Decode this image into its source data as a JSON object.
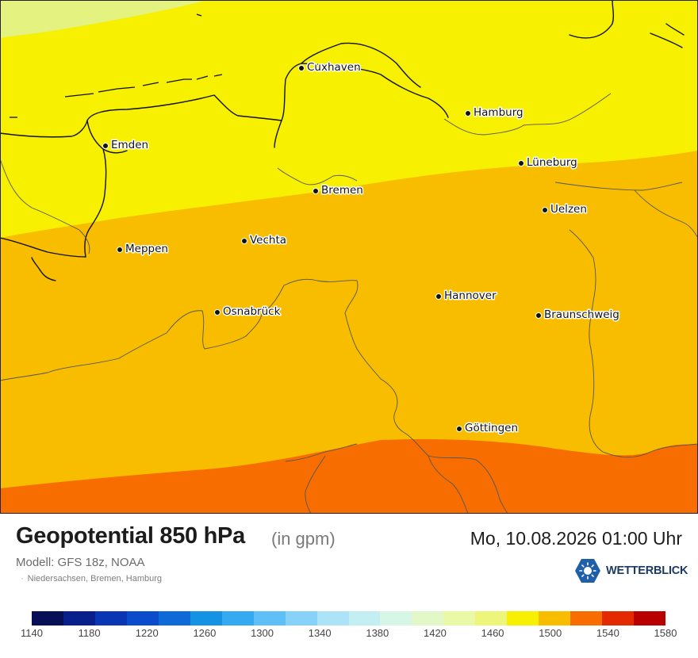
{
  "map": {
    "cities": [
      {
        "name": "Cuxhaven"
      },
      {
        "name": "Hamburg"
      },
      {
        "name": "Emden"
      },
      {
        "name": "Lüneburg"
      },
      {
        "name": "Bremen"
      },
      {
        "name": "Uelzen"
      },
      {
        "name": "Vechta"
      },
      {
        "name": "Meppen"
      },
      {
        "name": "Hannover"
      },
      {
        "name": "Osnabrück"
      },
      {
        "name": "Braunschweig"
      },
      {
        "name": "Göttingen"
      }
    ],
    "field_colors": {
      "band_1460_1480": "#e4f280",
      "band_1480_1500": "#f7f000",
      "band_1500_1520": "#f9bd00",
      "band_1520_1540": "#f86d00"
    }
  },
  "footer": {
    "title": "Geopotential 850 hPa",
    "unit": "(in gpm)",
    "model": "Modell: GFS 18z, NOAA",
    "region": "Niedersachsen, Bremen, Hamburg",
    "datetime": "Mo, 10.08.2026 01:00 Uhr",
    "brand": "WETTERBLICK"
  },
  "legend": {
    "tick_labels": [
      "1140",
      "1180",
      "1220",
      "1260",
      "1300",
      "1340",
      "1380",
      "1420",
      "1460",
      "1500",
      "1540",
      "1580"
    ],
    "colors": [
      "#071057",
      "#081f8c",
      "#0a35b3",
      "#0b4ccc",
      "#0d6ad6",
      "#1592e4",
      "#35aaf0",
      "#5ec0f7",
      "#86d2f8",
      "#ade3f7",
      "#c3eff2",
      "#d6f6e6",
      "#e3f8c8",
      "#e9f9a6",
      "#edf57b",
      "#f7f000",
      "#f9bd00",
      "#f86d00",
      "#e42b00",
      "#b80000"
    ]
  }
}
